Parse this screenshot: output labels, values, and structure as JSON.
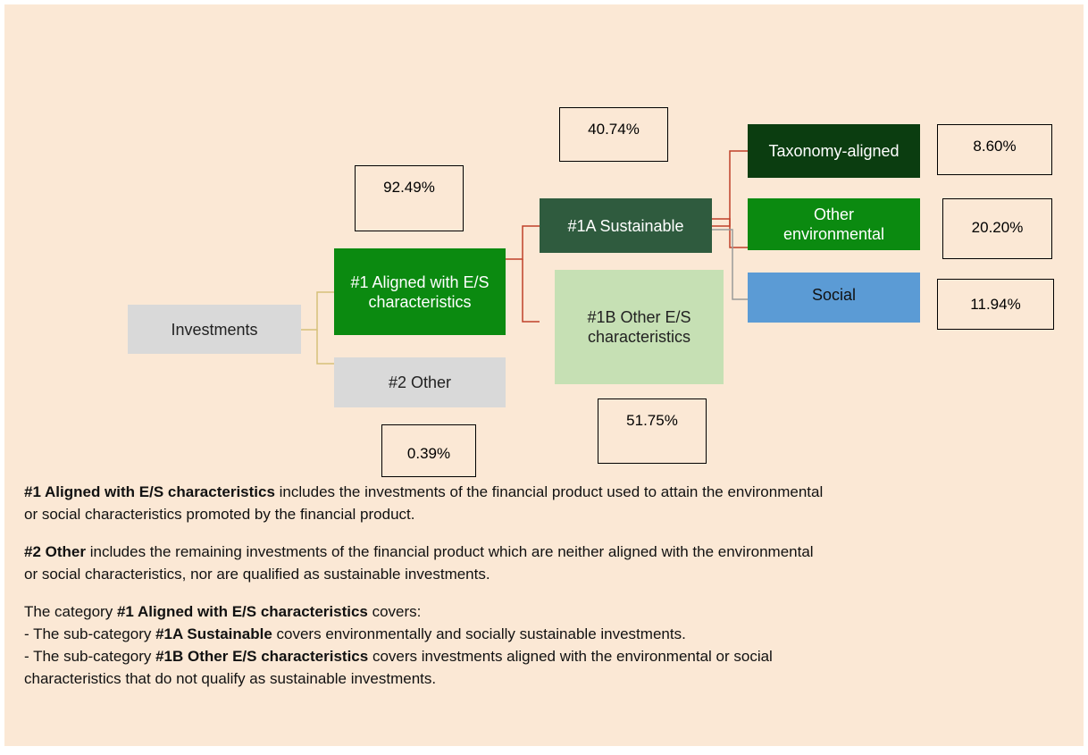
{
  "nodes": [
    {
      "label": "Investments"
    },
    {
      "label": "#1 Aligned with E/S characteristics"
    },
    {
      "label": "#2 Other"
    },
    {
      "label": "#1A Sustainable"
    },
    {
      "label": "#1B Other E/S characteristics"
    },
    {
      "label": "Taxonomy-aligned"
    },
    {
      "label": "Other environmental"
    },
    {
      "label": "Social"
    }
  ],
  "shares": [
    "92.49%",
    "0.39%",
    "40.74%",
    "51.75%",
    "8.60%",
    "20.20%",
    "11.94%"
  ],
  "paragraphs": [
    [
      [
        {
          "text": "#1 Aligned with E/S characteristics",
          "bold": true
        },
        {
          "text": " includes the investments of the financial product used to attain the environmental",
          "bold": false
        }
      ],
      [
        {
          "text": "or social characteristics promoted by the financial product.",
          "bold": false
        }
      ]
    ],
    [
      [
        {
          "text": "#2 Other",
          "bold": true
        },
        {
          "text": " includes the remaining investments of the financial product which are neither aligned with the environmental",
          "bold": false
        }
      ],
      [
        {
          "text": "or social characteristics, nor are qualified as sustainable investments.",
          "bold": false
        }
      ]
    ],
    [
      [
        {
          "text": "The category ",
          "bold": false
        },
        {
          "text": "#1 Aligned with E/S characteristics",
          "bold": true
        },
        {
          "text": " covers:",
          "bold": false
        }
      ],
      [
        {
          "text": "- The sub-category ",
          "bold": false
        },
        {
          "text": "#1A Sustainable",
          "bold": true
        },
        {
          "text": " covers environmentally and socially sustainable investments.",
          "bold": false
        }
      ],
      [
        {
          "text": "- The sub-category ",
          "bold": false
        },
        {
          "text": "#1B Other E/S characteristics",
          "bold": true
        },
        {
          "text": " covers investments aligned with the environmental or social",
          "bold": false
        }
      ],
      [
        {
          "text": "characteristics that do not qualify as sustainable investments.",
          "bold": false
        }
      ]
    ]
  ]
}
